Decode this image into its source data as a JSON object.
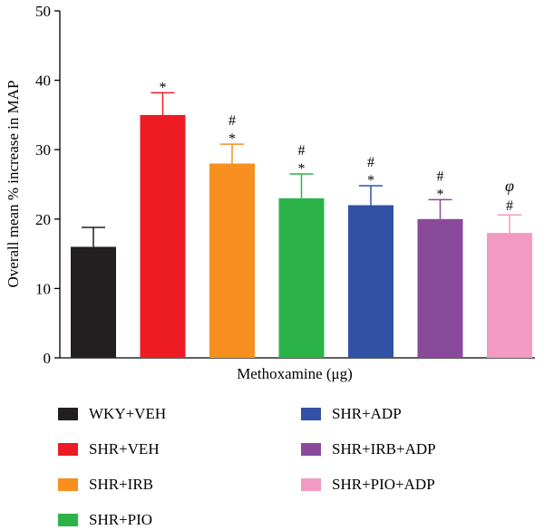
{
  "chart_data": {
    "type": "bar",
    "xlabel": "Methoxamine (μg)",
    "ylabel": "Overall mean % increase in MAP",
    "ylim": [
      0,
      50
    ],
    "yticks": [
      "0",
      "10",
      "20",
      "30",
      "40",
      "50"
    ],
    "categories": [
      "WKY+VEH",
      "SHR+VEH",
      "SHR+IRB",
      "SHR+PIO",
      "SHR+ADP",
      "SHR+IRB+ADP",
      "SHR+PIO+ADP"
    ],
    "values": [
      16,
      35,
      28,
      23,
      22,
      20,
      18
    ],
    "errors": [
      2.8,
      3.2,
      2.8,
      3.5,
      2.8,
      2.8,
      2.6
    ],
    "colors": [
      "#231f20",
      "#ed1c24",
      "#f7901e",
      "#2bb34a",
      "#3152a4",
      "#8a4a9c",
      "#f29ac2"
    ],
    "annotations": [
      [],
      [
        "*"
      ],
      [
        "*",
        "#"
      ],
      [
        "*",
        "#"
      ],
      [
        "*",
        "#"
      ],
      [
        "*",
        "#"
      ],
      [
        "#",
        "φ"
      ]
    ],
    "grid": false,
    "legend_placement": "bottom"
  }
}
